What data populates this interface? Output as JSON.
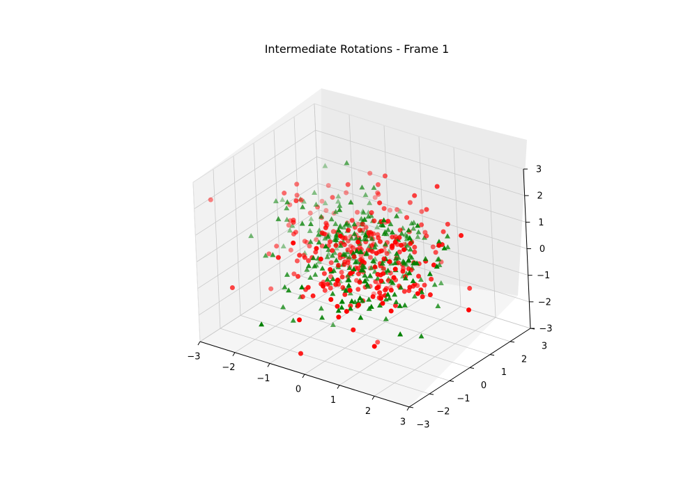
{
  "chart_data": {
    "type": "scatter",
    "projection": "3d",
    "title": "Intermediate Rotations - Frame 1",
    "xlabel": "",
    "ylabel": "",
    "zlabel": "",
    "xlim": [
      -3,
      3
    ],
    "ylim": [
      -3,
      3
    ],
    "zlim": [
      -3,
      3
    ],
    "x_ticks": [
      "−3",
      "−2",
      "−1",
      "0",
      "1",
      "2",
      "3"
    ],
    "y_ticks": [
      "−3",
      "−2",
      "−1",
      "0",
      "1",
      "2",
      "3"
    ],
    "z_ticks": [
      "−3",
      "−2",
      "−1",
      "0",
      "1",
      "2",
      "3"
    ],
    "grid": true,
    "legend": "none",
    "series": [
      {
        "marker": "circle",
        "color": "#ff0000",
        "approx_count": 300,
        "distribution": "standard normal, mean 0, std 1 per axis"
      },
      {
        "marker": "triangle",
        "color": "#008000",
        "approx_count": 300,
        "distribution": "standard normal, mean 0, std 1 per axis"
      }
    ]
  }
}
